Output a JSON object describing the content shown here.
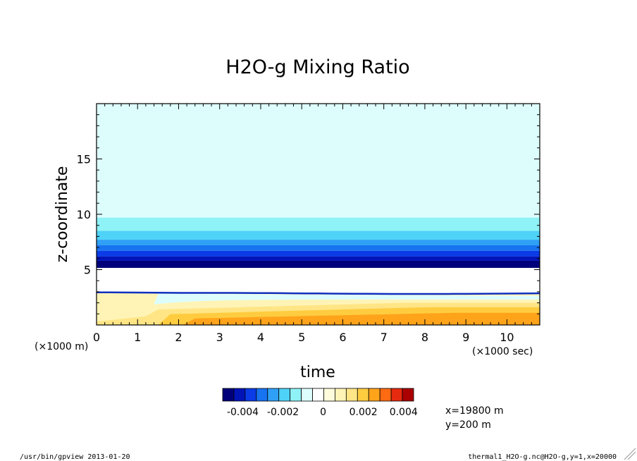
{
  "chart_data": {
    "type": "heatmap",
    "title": "H2O-g Mixing Ratio",
    "xlabel": "time",
    "ylabel": "z-coordinate",
    "x_unit": "(×1000 sec)",
    "y_unit": "(×1000 m)",
    "xlim": [
      0,
      10.8
    ],
    "ylim": [
      0,
      20
    ],
    "x_ticks": [
      "0",
      "1",
      "2",
      "3",
      "4",
      "5",
      "6",
      "7",
      "8",
      "9",
      "10"
    ],
    "y_ticks": [
      "5",
      "10",
      "15"
    ],
    "colorbar": {
      "levels": [
        -0.005,
        -0.0045,
        -0.004,
        -0.0035,
        -0.003,
        -0.0025,
        -0.002,
        -0.0015,
        -0.001,
        -0.0005,
        0,
        0.0005,
        0.001,
        0.0015,
        0.002,
        0.0025,
        0.003,
        0.0035,
        0.004,
        0.0045
      ],
      "colors": [
        "#00007a",
        "#0014b8",
        "#0a3be6",
        "#1773f0",
        "#2fa0f5",
        "#4fd2f7",
        "#8ff2f7",
        "#ddfdfd",
        "#ffffff",
        "#fffcdc",
        "#fff4b6",
        "#ffe585",
        "#ffcc40",
        "#ffa31a",
        "#ff6a12",
        "#e62a10",
        "#aa0000"
      ],
      "tick_labels": [
        "-0.004",
        "-0.002",
        "0",
        "0.002",
        "0.004"
      ],
      "tick_values": [
        -0.004,
        -0.002,
        0,
        0.002,
        0.004
      ]
    },
    "annotations": [
      "x=19800 m",
      "y=200 m"
    ]
  },
  "footer": {
    "left": "/usr/bin/gpview 2013-01-20",
    "right": "thermal1_H2O-g.nc@H2O-g,y=1,x=20000"
  }
}
